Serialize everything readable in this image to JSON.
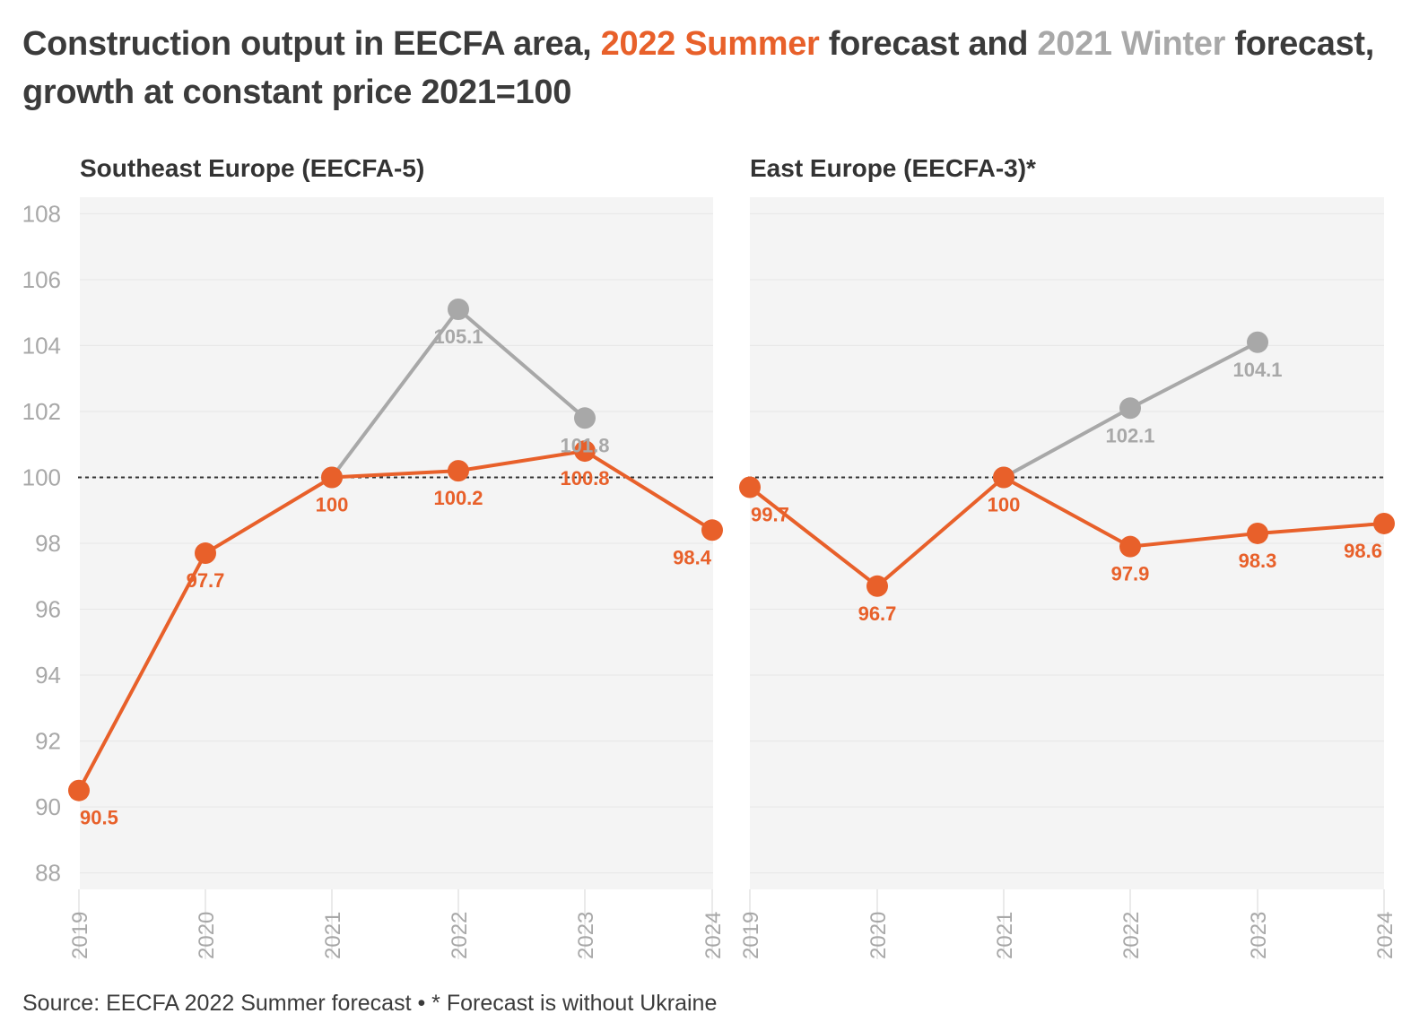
{
  "header": {
    "title_part1": "Construction output in EECFA area, ",
    "title_summer": "2022 Summer",
    "title_part2": " forecast and ",
    "title_winter": "2021 Winter",
    "title_part3": " forecast, growth at constant price 2021=100"
  },
  "footer": {
    "source": "Source: EECFA 2022 Summer forecast • * Forecast is without Ukraine"
  },
  "colors": {
    "summer": "#e8602a",
    "winter": "#a8a8a8",
    "plot_background": "#f4f4f4",
    "gridline": "#e6e6e6",
    "reference_line": "#333333"
  },
  "chart_data": [
    {
      "type": "line",
      "title": "Southeast Europe (EECFA-5)",
      "x": [
        "2019",
        "2020",
        "2021",
        "2022",
        "2023",
        "2024"
      ],
      "ylim": [
        87.5,
        108.5
      ],
      "yticks": [
        88,
        90,
        92,
        94,
        96,
        98,
        100,
        102,
        104,
        106,
        108
      ],
      "reference_line": 100,
      "grid": true,
      "series": [
        {
          "key": "winter",
          "x": [
            "2021",
            "2022",
            "2023"
          ],
          "values": [
            100,
            105.1,
            101.8
          ],
          "labels": [
            "",
            "105.1",
            "101.8"
          ]
        },
        {
          "key": "summer",
          "x": [
            "2019",
            "2020",
            "2021",
            "2022",
            "2023",
            "2024"
          ],
          "values": [
            90.5,
            97.7,
            100,
            100.2,
            100.8,
            98.4
          ],
          "labels": [
            "90.5",
            "97.7",
            "100",
            "100.2",
            "100.8",
            "98.4"
          ]
        }
      ]
    },
    {
      "type": "line",
      "title": "East Europe (EECFA-3)*",
      "x": [
        "2019",
        "2020",
        "2021",
        "2022",
        "2023",
        "2024"
      ],
      "ylim": [
        87.5,
        108.5
      ],
      "yticks": [
        88,
        90,
        92,
        94,
        96,
        98,
        100,
        102,
        104,
        106,
        108
      ],
      "reference_line": 100,
      "grid": true,
      "series": [
        {
          "key": "winter",
          "x": [
            "2021",
            "2022",
            "2023"
          ],
          "values": [
            100,
            102.1,
            104.1
          ],
          "labels": [
            "",
            "102.1",
            "104.1"
          ]
        },
        {
          "key": "summer",
          "x": [
            "2019",
            "2020",
            "2021",
            "2022",
            "2023",
            "2024"
          ],
          "values": [
            99.7,
            96.7,
            100,
            97.9,
            98.3,
            98.6
          ],
          "labels": [
            "99.7",
            "96.7",
            "100",
            "97.9",
            "98.3",
            "98.6"
          ]
        }
      ]
    }
  ]
}
